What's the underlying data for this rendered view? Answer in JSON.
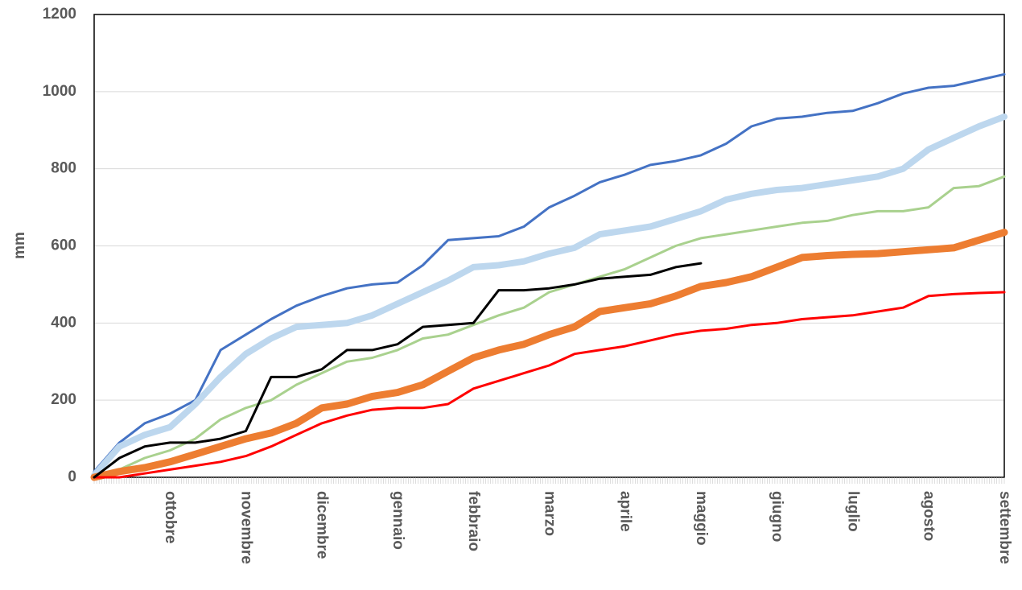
{
  "chart_data": {
    "type": "line",
    "y_label": "mm",
    "categories": [
      null,
      null,
      null,
      "ottobre",
      null,
      null,
      "novembre",
      null,
      null,
      "dicembre",
      null,
      null,
      "gennaio",
      null,
      null,
      "febbraio",
      null,
      null,
      "marzo",
      null,
      null,
      "aprile",
      null,
      null,
      "maggio",
      null,
      null,
      "giugno",
      null,
      null,
      "luglio",
      null,
      null,
      "agosto",
      null,
      null,
      "settembre"
    ],
    "ylim": [
      0,
      1200
    ],
    "yticks": [
      0,
      200,
      400,
      600,
      800,
      1000,
      1200
    ],
    "grid": true,
    "series": [
      {
        "color": "#4472c4",
        "width": 3,
        "values": [
          15,
          90,
          140,
          165,
          200,
          330,
          370,
          410,
          445,
          470,
          490,
          500,
          505,
          550,
          615,
          620,
          625,
          650,
          700,
          730,
          765,
          785,
          810,
          820,
          835,
          865,
          910,
          930,
          935,
          945,
          950,
          970,
          995,
          1010,
          1015,
          1030,
          1045
        ]
      },
      {
        "color": "#bdd7ee",
        "width": 8,
        "values": [
          5,
          80,
          110,
          130,
          190,
          260,
          320,
          360,
          390,
          395,
          400,
          420,
          450,
          480,
          510,
          545,
          550,
          560,
          580,
          595,
          630,
          640,
          650,
          670,
          690,
          720,
          735,
          745,
          750,
          760,
          770,
          780,
          800,
          850,
          880,
          910,
          935
        ]
      },
      {
        "color": "#a9d18e",
        "width": 3,
        "values": [
          0,
          20,
          50,
          70,
          100,
          150,
          180,
          200,
          240,
          270,
          300,
          310,
          330,
          360,
          370,
          395,
          420,
          440,
          480,
          500,
          520,
          540,
          570,
          600,
          620,
          630,
          640,
          650,
          660,
          665,
          680,
          690,
          690,
          700,
          750,
          755,
          780
        ]
      },
      {
        "color": "#ed7d31",
        "width": 9,
        "values": [
          0,
          15,
          25,
          40,
          60,
          80,
          100,
          115,
          140,
          180,
          190,
          210,
          220,
          240,
          275,
          310,
          330,
          345,
          370,
          390,
          430,
          440,
          450,
          470,
          495,
          505,
          520,
          545,
          570,
          575,
          578,
          580,
          585,
          590,
          595,
          615,
          635
        ]
      },
      {
        "color": "#ff0000",
        "width": 3,
        "values": [
          0,
          0,
          10,
          20,
          30,
          40,
          55,
          80,
          110,
          140,
          160,
          175,
          180,
          180,
          190,
          230,
          250,
          270,
          290,
          320,
          330,
          340,
          355,
          370,
          380,
          385,
          395,
          400,
          410,
          415,
          420,
          430,
          440,
          470,
          475,
          478,
          480
        ]
      },
      {
        "color": "#000000",
        "width": 3,
        "values": [
          0,
          50,
          80,
          90,
          90,
          100,
          120,
          260,
          260,
          280,
          330,
          330,
          345,
          390,
          395,
          400,
          485,
          485,
          490,
          500,
          515,
          520,
          525,
          545,
          555,
          null,
          null,
          null,
          null,
          null,
          null,
          null,
          null,
          null,
          null,
          null,
          null
        ]
      }
    ]
  }
}
